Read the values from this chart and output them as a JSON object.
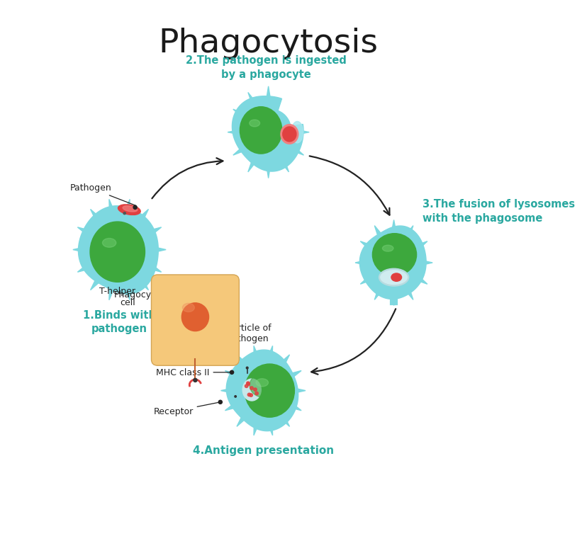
{
  "title": "Phagocytosis",
  "title_fontsize": 34,
  "title_color": "#1a1a1a",
  "background_color": "#ffffff",
  "teal_color": "#2aa8a0",
  "cell_body_color": "#7dd8e0",
  "cell_body_light": "#a8e8f0",
  "nucleus_color": "#3da83d",
  "nucleus_grad": "#2d8c2d",
  "red_color": "#e04040",
  "red_light": "#f08080",
  "orange_cell_color": "#f5c87a",
  "orange_nucleus_color": "#e06030",
  "label_color": "#2aa8a0",
  "black_color": "#222222",
  "step1_label": "1.Binds with\npathogen",
  "step2_label": "2.The pathogen is ingested\nby a phagocyte",
  "step3_label": "3.The fusion of lysosomes\nwith the phasosome",
  "step3_label_fix": "3.The fusion of lysosomes\nwith the phagosome",
  "step4_label": "4.Antigen presentation",
  "pathogen_label": "Pathogen",
  "phagocyte_label": "Phagocyte",
  "t_helper_label": "T-helper\ncell",
  "particle_label": "Particle of\npathogen",
  "mhc_label": "MHC class II",
  "receptor_label": "Receptor",
  "s1x": 0.215,
  "s1y": 0.535,
  "s2x": 0.5,
  "s2y": 0.76,
  "s3x": 0.74,
  "s3y": 0.51,
  "s4x": 0.49,
  "s4y": 0.265,
  "thx": 0.36,
  "thy": 0.4
}
